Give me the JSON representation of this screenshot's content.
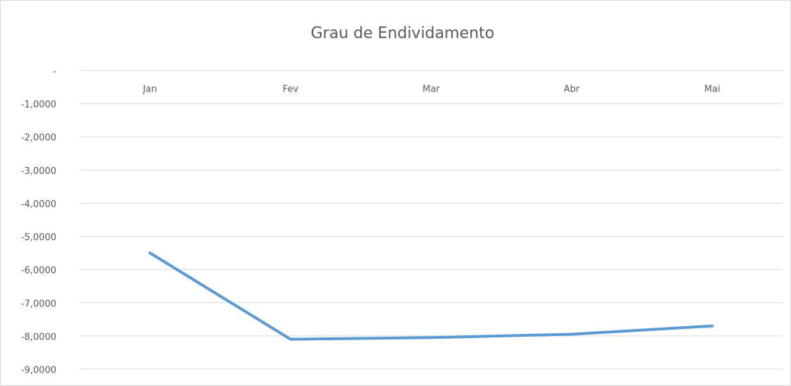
{
  "chart_data": {
    "type": "line",
    "title": "Grau de Endividamento",
    "categories": [
      "Jan",
      "Fev",
      "Mar",
      "Abr",
      "Mai"
    ],
    "series": [
      {
        "name": "Grau de Endividamento",
        "color": "#5b9bd5",
        "values": [
          -5.5,
          -8.1,
          -8.05,
          -7.95,
          -7.7
        ]
      }
    ],
    "ylim": [
      -9,
      0
    ],
    "yticks": [
      {
        "value": 0,
        "label": "-"
      },
      {
        "value": -1,
        "label": "-1,0000"
      },
      {
        "value": -2,
        "label": "-2,0000"
      },
      {
        "value": -3,
        "label": "-3,0000"
      },
      {
        "value": -4,
        "label": "-4,0000"
      },
      {
        "value": -5,
        "label": "-5,0000"
      },
      {
        "value": -6,
        "label": "-6,0000"
      },
      {
        "value": -7,
        "label": "-7,0000"
      },
      {
        "value": -8,
        "label": "-8,0000"
      },
      {
        "value": -9,
        "label": "-9,0000"
      }
    ],
    "grid": true
  }
}
